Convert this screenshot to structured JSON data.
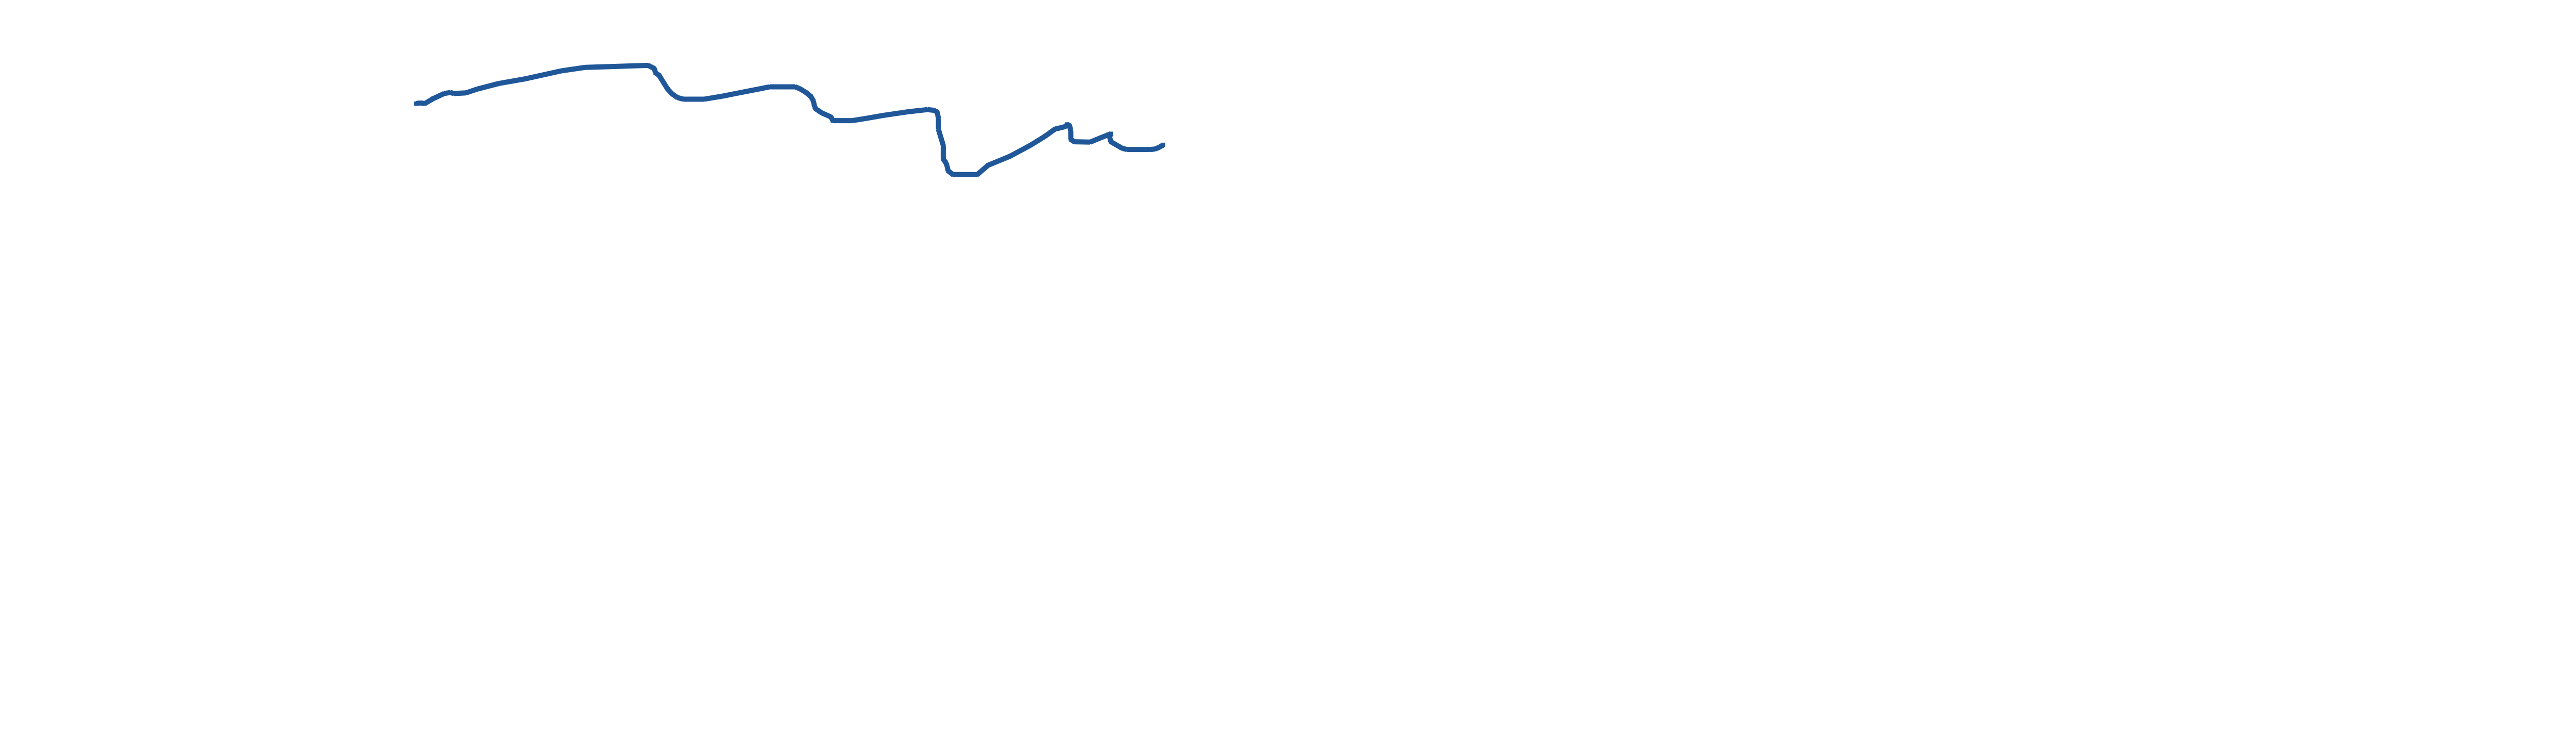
{
  "chart_data": {
    "type": "line",
    "title": "",
    "xlabel": "",
    "ylabel": "",
    "grid": false,
    "legend": "none",
    "axes_visible": false,
    "xlim": [
      0,
      100
    ],
    "ylim": [
      0,
      100
    ],
    "series": [
      {
        "color": "#1f5799",
        "points": [
          [
            0.0,
            86.0
          ],
          [
            0.3,
            86.2
          ],
          [
            0.7,
            86.0
          ],
          [
            1.4,
            87.5
          ],
          [
            2.3,
            89.0
          ],
          [
            2.8,
            89.3
          ],
          [
            3.1,
            89.0
          ],
          [
            4.1,
            89.2
          ],
          [
            5.0,
            90.3
          ],
          [
            6.8,
            92.0
          ],
          [
            9.0,
            93.4
          ],
          [
            12.0,
            95.8
          ],
          [
            13.9,
            96.8
          ],
          [
            19.1,
            97.4
          ],
          [
            19.3,
            97.0
          ],
          [
            19.6,
            96.5
          ],
          [
            19.7,
            95.2
          ],
          [
            20.0,
            94.4
          ],
          [
            20.7,
            90.3
          ],
          [
            21.1,
            88.8
          ],
          [
            21.5,
            87.8
          ],
          [
            22.0,
            87.3
          ],
          [
            23.7,
            87.3
          ],
          [
            25.2,
            88.2
          ],
          [
            26.3,
            89.0
          ],
          [
            28.0,
            90.2
          ],
          [
            29.1,
            91.0
          ],
          [
            31.2,
            91.0
          ],
          [
            31.6,
            90.4
          ],
          [
            32.1,
            89.3
          ],
          [
            32.5,
            88.1
          ],
          [
            32.7,
            86.8
          ],
          [
            32.8,
            85.1
          ],
          [
            32.9,
            84.4
          ],
          [
            33.4,
            83.2
          ],
          [
            34.1,
            82.1
          ],
          [
            34.2,
            81.7
          ],
          [
            34.3,
            80.9
          ],
          [
            35.9,
            80.9
          ],
          [
            37.1,
            81.6
          ],
          [
            38.5,
            82.5
          ],
          [
            40.6,
            83.6
          ],
          [
            42.1,
            84.2
          ],
          [
            42.6,
            84.0
          ],
          [
            42.9,
            83.5
          ],
          [
            43.0,
            81.5
          ],
          [
            43.0,
            78.3
          ],
          [
            43.4,
            73.5
          ],
          [
            43.4,
            69.4
          ],
          [
            43.6,
            68.4
          ],
          [
            43.7,
            67.5
          ],
          [
            43.8,
            65.9
          ],
          [
            44.2,
            64.8
          ],
          [
            46.2,
            64.8
          ],
          [
            47.1,
            67.6
          ],
          [
            48.9,
            70.3
          ],
          [
            50.6,
            73.6
          ],
          [
            51.8,
            76.3
          ],
          [
            52.6,
            78.4
          ],
          [
            53.1,
            78.8
          ],
          [
            53.5,
            79.2
          ],
          [
            53.6,
            79.8
          ],
          [
            53.8,
            79.4
          ],
          [
            53.9,
            77.8
          ],
          [
            53.9,
            75.3
          ],
          [
            54.2,
            74.6
          ],
          [
            55.5,
            74.5
          ],
          [
            56.1,
            75.4
          ],
          [
            57.0,
            76.7
          ],
          [
            57.2,
            77.0
          ],
          [
            57.1,
            76.0
          ],
          [
            57.2,
            74.6
          ],
          [
            58.1,
            72.7
          ],
          [
            58.5,
            72.3
          ],
          [
            60.4,
            72.3
          ],
          [
            60.8,
            72.4
          ],
          [
            61.1,
            72.8
          ],
          [
            61.4,
            73.4
          ],
          [
            61.5,
            73.7
          ]
        ]
      }
    ]
  }
}
